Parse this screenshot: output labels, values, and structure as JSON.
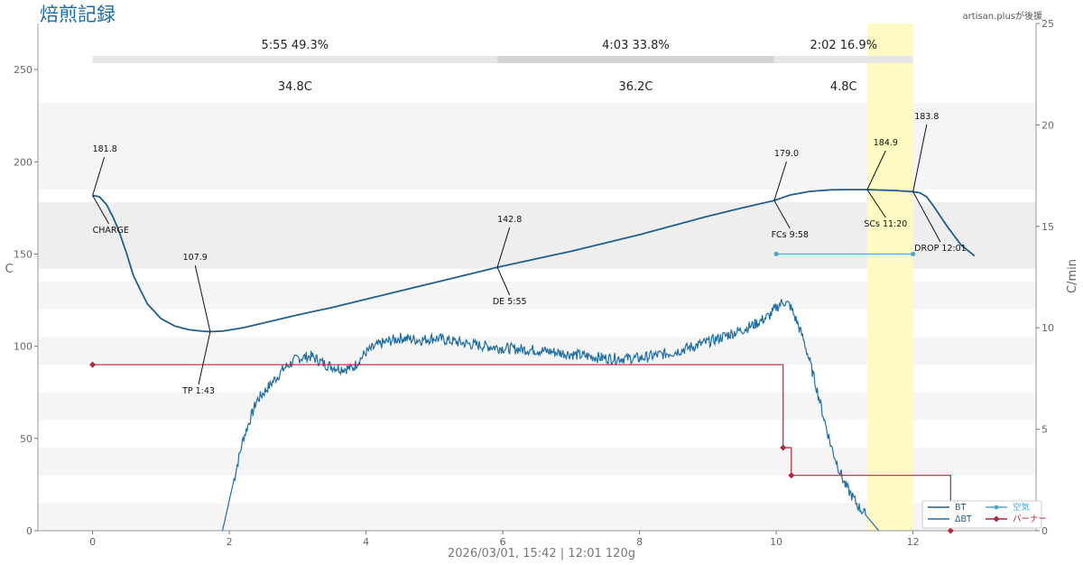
{
  "page": {
    "title": "焙煎記録",
    "credit": "artisan.plusが後援",
    "footer": "2026/03/01, 15:42   |   12:01   120g"
  },
  "colors": {
    "bt": "#1f5f8e",
    "dbt": "#1f6fa5",
    "air": "#4aa8d8",
    "burner": "#b3233b",
    "highlight": "#fffac2",
    "band": "#efefef",
    "text": "#333333"
  },
  "chart_data": {
    "type": "line",
    "title": "焙煎記録",
    "xlabel": "",
    "ylabel": "C",
    "y2label": "C/min",
    "xlim": [
      -0.8,
      13.8
    ],
    "ylim": [
      0,
      275
    ],
    "y2lim": [
      0,
      25
    ],
    "xticks": [
      0,
      2,
      4,
      6,
      8,
      10,
      12
    ],
    "yticks": [
      0,
      50,
      100,
      150,
      200,
      250
    ],
    "y2ticks": [
      0,
      5,
      10,
      15,
      20,
      25
    ],
    "grid": true,
    "highlight_x": [
      11.33,
      12.0
    ],
    "phases": [
      {
        "label": "5:55  49.3%",
        "delta": "34.8C",
        "x0": 0,
        "x1": 5.92
      },
      {
        "label": "4:03  33.8%",
        "delta": "36.2C",
        "x0": 5.92,
        "x1": 9.97
      },
      {
        "label": "2:02  16.9%",
        "delta": "4.8C",
        "x0": 9.97,
        "x1": 12.0
      }
    ],
    "series": [
      {
        "name": "BT",
        "axis": "y",
        "x": [
          0,
          0.1,
          0.2,
          0.3,
          0.4,
          0.5,
          0.6,
          0.8,
          1.0,
          1.2,
          1.4,
          1.6,
          1.72,
          1.9,
          2.2,
          2.6,
          3.0,
          3.5,
          4.0,
          4.5,
          5.0,
          5.5,
          5.92,
          6.5,
          7.0,
          7.5,
          8.0,
          8.5,
          9.0,
          9.5,
          9.97,
          10.2,
          10.5,
          10.8,
          11.0,
          11.33,
          11.6,
          11.8,
          12.0,
          12.1,
          12.2,
          12.3,
          12.5,
          12.7,
          12.9
        ],
        "values": [
          181.8,
          181.0,
          177.0,
          170.0,
          161.0,
          150.0,
          138.0,
          123.0,
          115.0,
          111.0,
          109.0,
          108.2,
          107.9,
          108.2,
          110.0,
          113.5,
          117.0,
          121.0,
          125.5,
          130.0,
          134.5,
          139.0,
          142.8,
          147.5,
          151.5,
          156.0,
          160.5,
          165.5,
          170.5,
          175.0,
          179.0,
          182.0,
          184.0,
          184.8,
          184.9,
          184.9,
          184.6,
          184.3,
          183.8,
          183.2,
          181.0,
          176.0,
          165.0,
          155.0,
          149.0
        ]
      },
      {
        "name": "ΔBT",
        "axis": "y2",
        "x": [
          1.9,
          2.0,
          2.2,
          2.4,
          2.6,
          2.8,
          3.0,
          3.2,
          3.4,
          3.6,
          3.8,
          4.0,
          4.2,
          4.5,
          4.8,
          5.0,
          5.5,
          6.0,
          6.5,
          7.0,
          7.5,
          8.0,
          8.5,
          9.0,
          9.5,
          9.7,
          9.9,
          10.0,
          10.1,
          10.2,
          10.3,
          10.4,
          10.5,
          10.6,
          10.7,
          10.8,
          10.9,
          11.0,
          11.2,
          11.4,
          11.5
        ],
        "values": [
          0,
          1.5,
          4.5,
          6.4,
          7.2,
          8.0,
          8.5,
          8.6,
          8.2,
          8.0,
          8.0,
          8.8,
          9.2,
          9.5,
          9.4,
          9.5,
          9.2,
          9.0,
          8.9,
          8.7,
          8.5,
          8.5,
          8.8,
          9.3,
          9.9,
          10.2,
          10.6,
          11.0,
          11.3,
          11.1,
          10.3,
          9.4,
          8.2,
          6.9,
          5.5,
          4.2,
          3.2,
          2.3,
          1.2,
          0.4,
          0
        ]
      },
      {
        "name": "空気",
        "axis": "y",
        "x": [
          10.0,
          12.0
        ],
        "values": [
          150,
          150
        ]
      },
      {
        "name": "バーナー",
        "axis": "y",
        "step": true,
        "x": [
          0,
          10.1,
          10.22,
          12.55
        ],
        "values": [
          90,
          45,
          30,
          0
        ]
      }
    ],
    "annotations": [
      {
        "event": "CHARGE",
        "temp": "181.8",
        "x": 0,
        "y": 181.8
      },
      {
        "event": "TP 1:43",
        "temp": "107.9",
        "x": 1.72,
        "y": 107.9
      },
      {
        "event": "DE 5:55",
        "temp": "142.8",
        "x": 5.92,
        "y": 142.8
      },
      {
        "event": "FCs 9:58",
        "temp": "179.0",
        "x": 9.97,
        "y": 179.0
      },
      {
        "event": "SCs 11:20",
        "temp": "184.9",
        "x": 11.33,
        "y": 184.9
      },
      {
        "event": "DROP 12:01",
        "temp": "183.8",
        "x": 12.0,
        "y": 183.8
      }
    ],
    "legend": {
      "position": "bottom-right",
      "items": [
        "BT",
        "ΔBT",
        "空気",
        "バーナー"
      ]
    }
  }
}
